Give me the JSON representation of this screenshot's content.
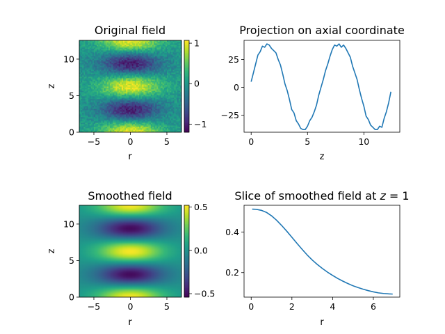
{
  "chart_data": [
    {
      "type": "heatmap",
      "title": "Original field",
      "xlabel": "r",
      "ylabel": "z",
      "xlim": [
        -7,
        7
      ],
      "ylim": [
        0,
        12.566
      ],
      "x_ticks": [
        -5,
        0,
        5
      ],
      "y_ticks": [
        0,
        5,
        10
      ],
      "colormap": "viridis",
      "noise": true,
      "field": "exp(-r^2/16) * cos(z)",
      "colorbar": {
        "range": [
          -1.2,
          1.07
        ],
        "ticks": [
          1,
          0,
          -1
        ]
      }
    },
    {
      "type": "line",
      "title": "Projection on axial coordinate",
      "xlabel": "z",
      "ylabel": "",
      "xlim": [
        -0.63,
        13.19
      ],
      "ylim": [
        -40.4,
        42.2
      ],
      "x_ticks": [
        0,
        5,
        10
      ],
      "y_ticks": [
        25,
        0,
        -25
      ],
      "series": [
        {
          "color": "#1f77b4",
          "x": [
            0.0,
            0.2,
            0.4,
            0.6,
            0.8,
            1.0,
            1.2,
            1.4,
            1.6,
            1.8,
            2.0,
            2.2,
            2.4,
            2.6,
            2.8,
            3.0,
            3.2,
            3.4,
            3.6,
            3.8,
            4.0,
            4.2,
            4.4,
            4.6,
            4.8,
            5.0,
            5.2,
            5.4,
            5.6,
            5.8,
            6.0,
            6.2,
            6.4,
            6.6,
            6.8,
            7.0,
            7.2,
            7.4,
            7.6,
            7.8,
            8.0,
            8.2,
            8.4,
            8.6,
            8.8,
            9.0,
            9.2,
            9.4,
            9.6,
            9.8,
            10.0,
            10.2,
            10.4,
            10.6,
            10.8,
            11.0,
            11.2,
            11.4,
            11.6,
            11.8,
            12.0,
            12.2,
            12.4
          ],
          "y": [
            5,
            13,
            21,
            29,
            32,
            37,
            36,
            39,
            38,
            35,
            33,
            31,
            25,
            20,
            12,
            3,
            -3,
            -11,
            -20,
            -23,
            -30,
            -33,
            -37,
            -38,
            -38,
            -35,
            -30,
            -27,
            -22,
            -16,
            -7,
            0,
            7,
            15,
            21,
            28,
            34,
            38,
            37,
            39,
            36,
            38,
            35,
            31,
            27,
            19,
            13,
            7,
            -2,
            -10,
            -17,
            -26,
            -29,
            -34,
            -36,
            -38,
            -38,
            -35,
            -36,
            -28,
            -22,
            -14,
            -4
          ]
        }
      ]
    },
    {
      "type": "heatmap",
      "title": "Smoothed field",
      "xlabel": "r",
      "ylabel": "z",
      "xlim": [
        -7,
        7
      ],
      "ylim": [
        0,
        12.566
      ],
      "x_ticks": [
        -5,
        0,
        5
      ],
      "y_ticks": [
        0,
        5,
        10
      ],
      "colormap": "viridis",
      "noise": false,
      "field": "0.51 * exp(-r^2/20) * cos(z)",
      "colorbar": {
        "range": [
          -0.54,
          0.52
        ],
        "ticks": [
          0.5,
          0.0,
          -0.5
        ],
        "tick_labels": [
          "0.5",
          "0.0",
          "−0.5"
        ]
      }
    },
    {
      "type": "line",
      "title": "Slice of smoothed field at z = 1",
      "title_prefix": "Slice of smoothed field at ",
      "title_var": "z",
      "title_suffix": " = 1",
      "xlabel": "r",
      "ylabel": "",
      "xlim": [
        -0.35,
        7.3
      ],
      "ylim": [
        0.079,
        0.532
      ],
      "x_ticks": [
        0,
        2,
        4,
        6
      ],
      "y_ticks": [
        0.4,
        0.2
      ],
      "series": [
        {
          "color": "#1f77b4",
          "x": [
            0.05,
            0.25,
            0.5,
            0.75,
            1.0,
            1.25,
            1.5,
            1.75,
            2.0,
            2.25,
            2.5,
            2.75,
            3.0,
            3.25,
            3.5,
            3.75,
            4.0,
            4.25,
            4.5,
            4.75,
            5.0,
            5.25,
            5.5,
            5.75,
            6.0,
            6.25,
            6.5,
            6.75,
            6.95
          ],
          "y": [
            0.513,
            0.512,
            0.507,
            0.497,
            0.48,
            0.458,
            0.432,
            0.404,
            0.374,
            0.344,
            0.315,
            0.287,
            0.262,
            0.24,
            0.22,
            0.202,
            0.186,
            0.171,
            0.158,
            0.146,
            0.135,
            0.126,
            0.118,
            0.111,
            0.105,
            0.1,
            0.097,
            0.095,
            0.094
          ]
        }
      ]
    }
  ]
}
